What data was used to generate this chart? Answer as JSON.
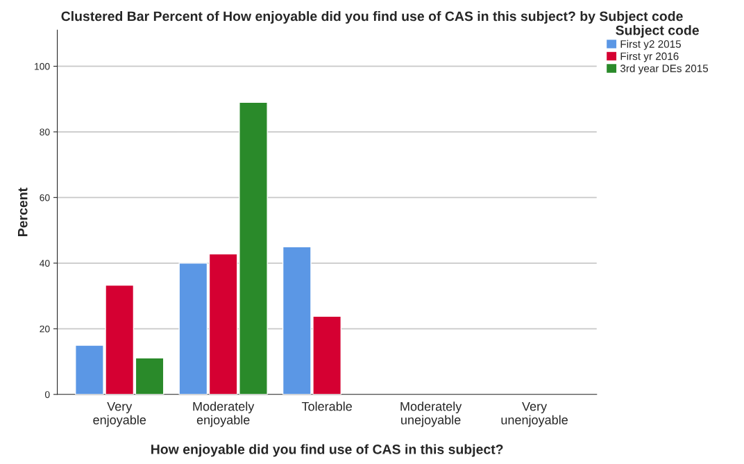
{
  "chart_data": {
    "type": "bar",
    "title": "Clustered Bar Percent of How enjoyable did you find use of CAS in this subject? by Subject code",
    "xlabel": "How enjoyable did you find use of CAS in this subject?",
    "ylabel": "Percent",
    "legend_title": "Subject code",
    "categories": [
      "Very\nenjoyable",
      "Moderately\nenjoyable",
      "Tolerable",
      "Moderately\nunejoyable",
      "Very\nunenjoyable"
    ],
    "series": [
      {
        "name": "First y2 2015",
        "color": "#5b97e5",
        "values": [
          15,
          40,
          45,
          null,
          null
        ]
      },
      {
        "name": "First yr 2016",
        "color": "#d50032",
        "values": [
          33.3,
          42.8,
          23.8,
          null,
          null
        ]
      },
      {
        "name": "3rd year DEs 2015",
        "color": "#2a8a2a",
        "values": [
          11.1,
          89,
          null,
          null,
          null
        ]
      }
    ],
    "ylim": [
      0,
      111
    ],
    "yticks": [
      0,
      20,
      40,
      60,
      80,
      100
    ],
    "grid": "y",
    "legend": "top right"
  }
}
